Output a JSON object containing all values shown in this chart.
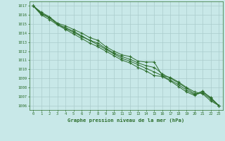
{
  "title": "Graphe pression niveau de la mer (hPa)",
  "xlabel_ticks": [
    0,
    1,
    2,
    3,
    4,
    5,
    6,
    7,
    8,
    9,
    10,
    11,
    12,
    13,
    14,
    15,
    16,
    17,
    18,
    19,
    20,
    21,
    22,
    23
  ],
  "ylim": [
    1005.5,
    1017.5
  ],
  "yticks": [
    1006,
    1007,
    1008,
    1009,
    1010,
    1011,
    1012,
    1013,
    1014,
    1015,
    1016,
    1017
  ],
  "background_color": "#c8e8e8",
  "grid_color": "#aacccc",
  "line_color": "#2d6e2d",
  "lines": [
    [
      1017.0,
      1016.3,
      1015.8,
      1015.1,
      1014.8,
      1014.4,
      1014.0,
      1013.5,
      1013.2,
      1012.5,
      1012.0,
      1011.6,
      1011.4,
      1010.9,
      1010.8,
      1010.8,
      1009.3,
      1009.1,
      1008.6,
      1008.0,
      1007.5,
      1007.3,
      1006.5,
      1006.0
    ],
    [
      1017.0,
      1016.2,
      1015.7,
      1015.0,
      1014.6,
      1014.2,
      1013.7,
      1013.2,
      1012.9,
      1012.3,
      1011.8,
      1011.4,
      1011.1,
      1010.7,
      1010.4,
      1010.2,
      1009.5,
      1009.0,
      1008.5,
      1007.9,
      1007.3,
      1007.4,
      1006.7,
      1006.0
    ],
    [
      1017.0,
      1016.1,
      1015.7,
      1015.0,
      1014.5,
      1014.1,
      1013.6,
      1013.2,
      1012.7,
      1012.2,
      1011.7,
      1011.2,
      1010.9,
      1010.5,
      1010.1,
      1009.7,
      1009.3,
      1008.8,
      1008.3,
      1007.7,
      1007.2,
      1007.6,
      1006.8,
      1006.0
    ],
    [
      1017.0,
      1016.0,
      1015.5,
      1014.9,
      1014.4,
      1013.9,
      1013.4,
      1012.9,
      1012.5,
      1012.0,
      1011.5,
      1011.0,
      1010.7,
      1010.2,
      1009.8,
      1009.3,
      1009.2,
      1008.7,
      1008.1,
      1007.5,
      1007.1,
      1007.5,
      1006.9,
      1006.0
    ]
  ],
  "fig_width": 3.2,
  "fig_height": 2.0,
  "dpi": 100
}
